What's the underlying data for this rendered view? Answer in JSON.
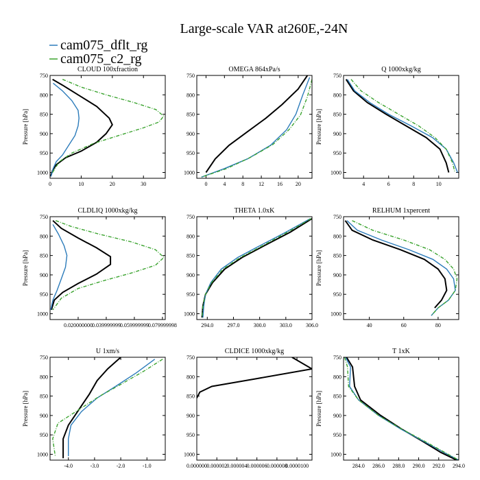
{
  "figure": {
    "title": "Large-scale VAR at260E,-24N"
  },
  "legend": [
    {
      "label": "cam075_dflt_rg",
      "color": "#2b7bba",
      "style": "solid"
    },
    {
      "label": "cam075_c2_rg",
      "color": "#3aa32e",
      "style": "dashdot"
    }
  ],
  "reference_line_color": "#000000",
  "chart_data": [
    {
      "type": "line",
      "title": "CLOUD  100xfraction",
      "ylabel": "Pressure [hPa]",
      "xlim": [
        0,
        37
      ],
      "ylim": [
        1015,
        750
      ],
      "xticks": [
        0,
        10,
        20,
        30
      ],
      "xtick_labels": [
        "0",
        "10",
        "20",
        "30"
      ],
      "yticks": [
        750,
        800,
        850,
        900,
        950,
        1000
      ],
      "series": [
        {
          "color": "#000000",
          "style": "solid",
          "x": [
            0.8,
            4,
            9,
            15,
            19,
            20,
            18,
            15,
            10,
            5,
            2,
            0.8,
            0.2
          ],
          "y": [
            760,
            775,
            800,
            830,
            860,
            877,
            900,
            922,
            945,
            962,
            980,
            995,
            1010
          ]
        },
        {
          "name": "cam075_dflt_rg",
          "color": "#2b7bba",
          "style": "solid",
          "x": [
            1,
            4,
            7,
            9,
            9.3,
            9,
            8,
            6,
            4,
            2,
            1,
            0.3
          ],
          "y": [
            770,
            790,
            815,
            840,
            860,
            880,
            905,
            930,
            955,
            972,
            990,
            1010
          ]
        },
        {
          "name": "cam075_c2_rg",
          "color": "#3aa32e",
          "style": "dashdot",
          "x": [
            4,
            10,
            18,
            27,
            34,
            36.5,
            35,
            30,
            22,
            14,
            7,
            3,
            0.8
          ],
          "y": [
            760,
            780,
            800,
            820,
            838,
            855,
            870,
            885,
            905,
            925,
            950,
            972,
            1000
          ]
        }
      ]
    },
    {
      "type": "line",
      "title": "OMEGA  864xPa/s",
      "ylabel": "",
      "xlim": [
        -2,
        23
      ],
      "ylim": [
        1015,
        750
      ],
      "xticks": [
        0,
        4,
        8,
        12,
        16,
        20
      ],
      "xtick_labels": [
        "0",
        "4",
        "8",
        "12",
        "16",
        "20"
      ],
      "yticks": [
        750,
        800,
        850,
        900,
        950,
        1000
      ],
      "series": [
        {
          "color": "#000000",
          "style": "solid",
          "x": [
            22,
            20,
            16.5,
            13,
            9,
            5,
            2,
            0
          ],
          "y": [
            750,
            785,
            825,
            860,
            895,
            930,
            965,
            1000
          ]
        },
        {
          "name": "cam075_dflt_rg",
          "color": "#2b7bba",
          "style": "solid",
          "x": [
            22.5,
            21,
            19.5,
            17.5,
            14,
            9,
            4,
            -1
          ],
          "y": [
            755,
            800,
            850,
            890,
            930,
            965,
            990,
            1012
          ]
        },
        {
          "name": "cam075_c2_rg",
          "color": "#3aa32e",
          "style": "dashdot",
          "x": [
            23,
            22,
            20.5,
            18,
            14.5,
            9.5,
            4.5,
            -1
          ],
          "y": [
            760,
            805,
            852,
            890,
            928,
            962,
            990,
            1012
          ]
        }
      ]
    },
    {
      "type": "line",
      "title": "Q  1000xkg/kg",
      "ylabel": "Pressure [hPa]",
      "xlim": [
        2.4,
        11.6
      ],
      "ylim": [
        1015,
        750
      ],
      "xticks": [
        4,
        6,
        8,
        10
      ],
      "xtick_labels": [
        "4",
        "6",
        "8",
        "10"
      ],
      "yticks": [
        750,
        800,
        850,
        900,
        950,
        1000
      ],
      "series": [
        {
          "color": "#000000",
          "style": "solid",
          "x": [
            2.6,
            3.2,
            4.3,
            5.8,
            7.4,
            9,
            10.1,
            10.6,
            10.8
          ],
          "y": [
            760,
            790,
            820,
            850,
            880,
            910,
            940,
            975,
            1000
          ]
        },
        {
          "name": "cam075_dflt_rg",
          "color": "#2b7bba",
          "style": "solid",
          "x": [
            2.7,
            3.3,
            4.5,
            6,
            7.8,
            9.5,
            10.6,
            11.2,
            11.5
          ],
          "y": [
            760,
            790,
            820,
            850,
            880,
            910,
            940,
            975,
            1000
          ]
        },
        {
          "name": "cam075_c2_rg",
          "color": "#3aa32e",
          "style": "dashdot",
          "x": [
            3,
            3.8,
            5.2,
            6.8,
            8.4,
            9.7,
            10.6,
            11.1,
            11.3
          ],
          "y": [
            760,
            790,
            820,
            850,
            880,
            910,
            940,
            975,
            1000
          ]
        }
      ]
    },
    {
      "type": "line",
      "title": "CLDLIQ  1000xkg/kg",
      "ylabel": "Pressure [hPa]",
      "xlim": [
        0,
        0.082
      ],
      "ylim": [
        1015,
        750
      ],
      "xticks": [
        0.02,
        0.04,
        0.06,
        0.08
      ],
      "xtick_labels": [
        "0.020000000",
        "0.039999999",
        "0.059999999",
        "0.079999998"
      ],
      "yticks": [
        750,
        800,
        850,
        900,
        950,
        1000
      ],
      "series": [
        {
          "color": "#000000",
          "style": "solid",
          "x": [
            0.002,
            0.008,
            0.02,
            0.033,
            0.043,
            0.043,
            0.033,
            0.02,
            0.009,
            0.003,
            0.001
          ],
          "y": [
            760,
            780,
            805,
            830,
            853,
            873,
            898,
            922,
            945,
            965,
            990
          ]
        },
        {
          "name": "cam075_dflt_rg",
          "color": "#2b7bba",
          "style": "solid",
          "x": [
            0.002,
            0.006,
            0.01,
            0.012,
            0.011,
            0.008,
            0.005,
            0.002,
            0.0005
          ],
          "y": [
            770,
            795,
            825,
            850,
            880,
            910,
            940,
            965,
            990
          ]
        },
        {
          "name": "cam075_c2_rg",
          "color": "#3aa32e",
          "style": "dashdot",
          "x": [
            0.004,
            0.015,
            0.035,
            0.058,
            0.075,
            0.081,
            0.075,
            0.058,
            0.038,
            0.02,
            0.008,
            0.002
          ],
          "y": [
            760,
            775,
            795,
            815,
            835,
            855,
            875,
            895,
            915,
            935,
            960,
            990
          ]
        }
      ]
    },
    {
      "type": "line",
      "title": "THETA  1.0xK",
      "ylabel": "",
      "xlim": [
        292.8,
        306.0
      ],
      "ylim": [
        1015,
        750
      ],
      "xticks": [
        294.0,
        297.0,
        300.0,
        303.0,
        306.0
      ],
      "xtick_labels": [
        "294.0",
        "297.0",
        "300.0",
        "303.0",
        "306.0"
      ],
      "yticks": [
        750,
        800,
        850,
        900,
        950,
        1000
      ],
      "series": [
        {
          "color": "#000000",
          "style": "solid",
          "x": [
            306,
            303.5,
            300.5,
            298,
            296,
            294.6,
            293.8,
            293.5,
            293.4
          ],
          "y": [
            755,
            790,
            825,
            855,
            885,
            920,
            950,
            980,
            1010
          ]
        },
        {
          "name": "cam075_dflt_rg",
          "color": "#2b7bba",
          "style": "solid",
          "x": [
            305.8,
            303,
            300,
            297.5,
            295.6,
            294.4,
            293.8,
            293.6,
            293.5
          ],
          "y": [
            755,
            790,
            825,
            855,
            885,
            920,
            950,
            980,
            1010
          ]
        },
        {
          "name": "cam075_c2_rg",
          "color": "#3aa32e",
          "style": "dashdot",
          "x": [
            305.9,
            303.2,
            300.3,
            297.8,
            295.8,
            294.5,
            293.8,
            293.5,
            293.4
          ],
          "y": [
            755,
            790,
            825,
            855,
            885,
            920,
            950,
            980,
            1010
          ]
        }
      ]
    },
    {
      "type": "line",
      "title": "RELHUM  1xpercent",
      "ylabel": "Pressure [hPa]",
      "xlim": [
        25,
        92
      ],
      "ylim": [
        1015,
        750
      ],
      "xticks": [
        40,
        60,
        80
      ],
      "xtick_labels": [
        "40",
        "60",
        "80"
      ],
      "yticks": [
        750,
        800,
        850,
        900,
        950,
        1000
      ],
      "series": [
        {
          "color": "#000000",
          "style": "solid",
          "x": [
            26,
            30,
            42,
            58,
            72,
            80,
            84,
            85,
            82,
            78
          ],
          "y": [
            760,
            785,
            810,
            835,
            860,
            885,
            910,
            940,
            965,
            985
          ]
        },
        {
          "name": "cam075_dflt_rg",
          "color": "#2b7bba",
          "style": "solid",
          "x": [
            27,
            33,
            47,
            63,
            77,
            85,
            89,
            90,
            86,
            80,
            76
          ],
          "y": [
            760,
            785,
            810,
            835,
            860,
            885,
            910,
            940,
            965,
            985,
            1005
          ]
        },
        {
          "name": "cam075_c2_rg",
          "color": "#3aa32e",
          "style": "dashdot",
          "x": [
            30,
            42,
            60,
            75,
            84,
            89,
            91,
            90,
            86,
            80,
            76
          ],
          "y": [
            760,
            785,
            810,
            835,
            860,
            885,
            910,
            940,
            965,
            985,
            1005
          ]
        }
      ]
    },
    {
      "type": "line",
      "title": "U  1xm/s",
      "ylabel": "Pressure [hPa]",
      "xlim": [
        -4.7,
        -0.3
      ],
      "ylim": [
        1015,
        750
      ],
      "xticks": [
        -4.0,
        -3.0,
        -2.0,
        -1.0
      ],
      "xtick_labels": [
        "-4.0",
        "-3.0",
        "-2.0",
        "-1.0"
      ],
      "yticks": [
        750,
        800,
        850,
        900,
        950,
        1000
      ],
      "series": [
        {
          "color": "#000000",
          "style": "solid",
          "x": [
            -2.0,
            -2.5,
            -2.9,
            -3.2,
            -3.6,
            -4.0,
            -4.2,
            -4.2
          ],
          "y": [
            750,
            780,
            810,
            845,
            885,
            925,
            960,
            1010
          ]
        },
        {
          "name": "cam075_dflt_rg",
          "color": "#2b7bba",
          "style": "solid",
          "x": [
            -0.7,
            -1.4,
            -2.2,
            -2.9,
            -3.5,
            -3.9,
            -4.0,
            -4.0
          ],
          "y": [
            755,
            790,
            825,
            855,
            890,
            925,
            960,
            1005
          ]
        },
        {
          "name": "cam075_c2_rg",
          "color": "#3aa32e",
          "style": "dashdot",
          "x": [
            -0.4,
            -1.1,
            -2.0,
            -2.8,
            -3.6,
            -4.4,
            -4.6,
            -4.5
          ],
          "y": [
            755,
            785,
            820,
            850,
            885,
            920,
            960,
            1005
          ]
        }
      ]
    },
    {
      "type": "line",
      "title": "CLDICE  1000xkg/kg",
      "ylabel": "",
      "xlim": [
        0,
        1.15e-05
      ],
      "ylim": [
        1015,
        750
      ],
      "xticks": [
        0,
        2e-06,
        4e-06,
        6e-06,
        8e-06,
        1e-05
      ],
      "xtick_labels": [
        "0.000000",
        "0.000002",
        "0.000004",
        "0.000006",
        "0.000008",
        "0.0000100"
      ],
      "yticks": [
        750,
        800,
        850,
        900,
        950,
        1000
      ],
      "series": [
        {
          "color": "#000000",
          "style": "solid",
          "x": [
            9.5e-06,
            1.15e-05,
            6e-06,
            1.5e-06,
            3e-07,
            0
          ],
          "y": [
            750,
            780,
            805,
            825,
            840,
            855
          ]
        }
      ]
    },
    {
      "type": "line",
      "title": "T  1xK",
      "ylabel": "Pressure [hPa]",
      "xlim": [
        282.5,
        294.0
      ],
      "ylim": [
        1015,
        750
      ],
      "xticks": [
        284.0,
        286.0,
        288.0,
        290.0,
        292.0,
        294.0
      ],
      "xtick_labels": [
        "284.0",
        "286.0",
        "288.0",
        "290.0",
        "292.0",
        "294.0"
      ],
      "yticks": [
        750,
        800,
        850,
        900,
        950,
        1000
      ],
      "series": [
        {
          "color": "#000000",
          "style": "solid",
          "x": [
            282.8,
            283.4,
            283.6,
            284.2,
            286.2,
            288.3,
            290.3,
            292.2,
            293.8
          ],
          "y": [
            750,
            775,
            825,
            860,
            900,
            935,
            965,
            995,
            1015
          ]
        },
        {
          "name": "cam075_dflt_rg",
          "color": "#2b7bba",
          "style": "solid",
          "x": [
            282.7,
            283.2,
            283.1,
            284.0,
            286.0,
            288.2,
            290.4,
            292.5,
            294.0
          ],
          "y": [
            750,
            775,
            825,
            860,
            900,
            935,
            965,
            995,
            1015
          ]
        },
        {
          "name": "cam075_c2_rg",
          "color": "#3aa32e",
          "style": "dashdot",
          "x": [
            282.6,
            282.9,
            283.0,
            284.0,
            286.0,
            288.3,
            290.5,
            292.6,
            294.0
          ],
          "y": [
            750,
            775,
            825,
            860,
            900,
            935,
            965,
            995,
            1015
          ]
        }
      ]
    }
  ]
}
